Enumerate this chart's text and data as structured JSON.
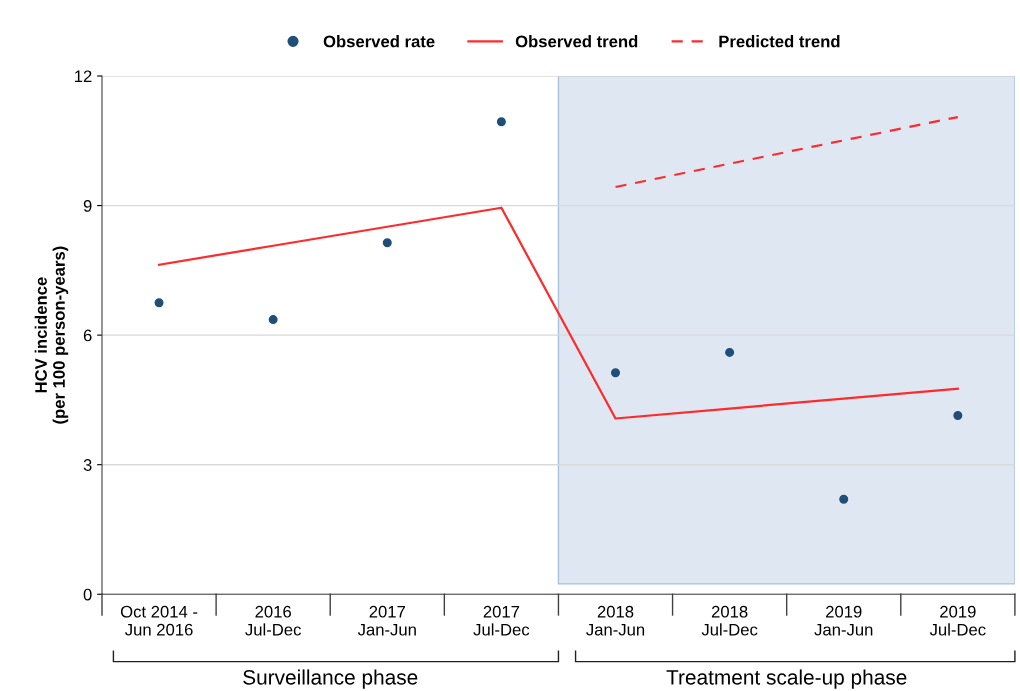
{
  "chart_data": {
    "type": "scatter",
    "ylabel": "HCV incidence\n(per 100 person-years)",
    "categories": [
      "Oct 2014 -\nJun 2016",
      "2016\nJul-Dec",
      "2017\nJan-Jun",
      "2017\nJul-Dec",
      "2018\nJan-Jun",
      "2018\nJul-Dec",
      "2019\nJan-Jun",
      "2019\nJul-Dec"
    ],
    "series": [
      {
        "name": "Observed rate",
        "marker": "circle",
        "color": "#1f4e79",
        "values": [
          6.75,
          6.36,
          8.14,
          10.94,
          5.13,
          5.6,
          2.2,
          4.14
        ]
      },
      {
        "name": "Observed trend",
        "type": "line",
        "marker": "none",
        "line_style": "solid",
        "color": "#ff2a2a",
        "values": [
          7.63,
          8.07,
          8.51,
          8.95,
          4.07,
          4.3,
          4.53,
          4.76
        ]
      },
      {
        "name": "Predicted trend",
        "type": "line",
        "marker": "none",
        "line_style": "dashed",
        "color": "#ff2a2a",
        "values": [
          null,
          null,
          null,
          null,
          9.43,
          9.97,
          10.51,
          11.05
        ]
      }
    ],
    "ylim": [
      0,
      12
    ],
    "yticks": [
      0,
      3,
      6,
      9,
      12
    ],
    "grid": "y",
    "legend": "top",
    "bands": [
      {
        "axis": "x",
        "from": "2018\nJan-Jun",
        "to": "2019\nJul-Dec",
        "color": "#dfe7f3"
      }
    ],
    "annotations": [
      "Surveillance phase",
      "Treatment scale-up phase"
    ]
  }
}
